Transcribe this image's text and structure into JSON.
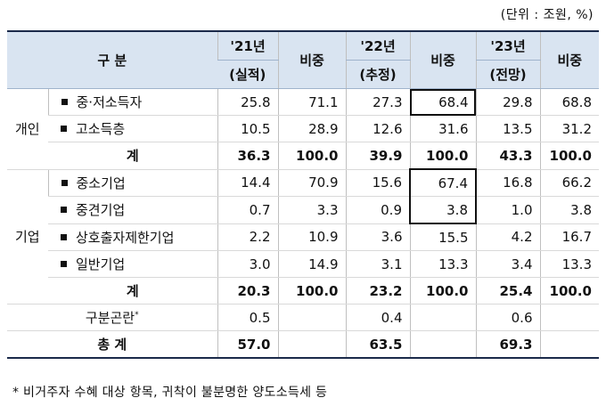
{
  "unit": "(단위 : 조원, %)",
  "header": {
    "category": "구  분",
    "y21": "'21년",
    "y21_sub": "(실적)",
    "y22": "'22년",
    "y22_sub": "(추정)",
    "y23": "'23년",
    "y23_sub": "(전망)",
    "share": "비중"
  },
  "groups": {
    "individual": "개인",
    "corporate": "기업"
  },
  "rows": {
    "r1": {
      "label": "중·저소득자",
      "v21": "25.8",
      "s21": "71.1",
      "v22": "27.3",
      "s22": "68.4",
      "v23": "29.8",
      "s23": "68.8"
    },
    "r2": {
      "label": "고소득층",
      "v21": "10.5",
      "s21": "28.9",
      "v22": "12.6",
      "s22": "31.6",
      "v23": "13.5",
      "s23": "31.2"
    },
    "sub1": {
      "label": "계",
      "v21": "36.3",
      "s21": "100.0",
      "v22": "39.9",
      "s22": "100.0",
      "v23": "43.3",
      "s23": "100.0"
    },
    "r3": {
      "label": "중소기업",
      "v21": "14.4",
      "s21": "70.9",
      "v22": "15.6",
      "s22": "67.4",
      "v23": "16.8",
      "s23": "66.2"
    },
    "r4": {
      "label": "중견기업",
      "v21": "0.7",
      "s21": "3.3",
      "v22": "0.9",
      "s22": "3.8",
      "v23": "1.0",
      "s23": "3.8"
    },
    "r5": {
      "label": "상호출자제한기업",
      "v21": "2.2",
      "s21": "10.9",
      "v22": "3.6",
      "s22": "15.5",
      "v23": "4.2",
      "s23": "16.7"
    },
    "r6": {
      "label": "일반기업",
      "v21": "3.0",
      "s21": "14.9",
      "v22": "3.1",
      "s22": "13.3",
      "v23": "3.4",
      "s23": "13.3"
    },
    "sub2": {
      "label": "계",
      "v21": "20.3",
      "s21": "100.0",
      "v22": "23.2",
      "s22": "100.0",
      "v23": "25.4",
      "s23": "100.0"
    },
    "misc": {
      "label": "구분곤란",
      "mark": "*",
      "v21": "0.5",
      "v22": "0.4",
      "v23": "0.6"
    },
    "total": {
      "label": "총  계",
      "v21": "57.0",
      "v22": "63.5",
      "v23": "69.3"
    }
  },
  "footnote": "* 비거주자 수혜 대상 항목, 귀착이 불분명한 양도소득세 등"
}
